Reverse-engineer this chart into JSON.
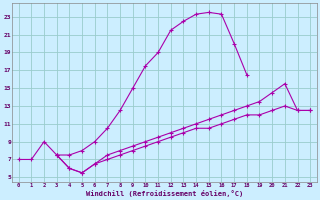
{
  "background_color": "#cceeff",
  "grid_color": "#99cccc",
  "line_color": "#aa00aa",
  "xlim": [
    -0.5,
    23.5
  ],
  "ylim": [
    4.5,
    24.5
  ],
  "yticks": [
    5,
    7,
    9,
    11,
    13,
    15,
    17,
    19,
    21,
    23
  ],
  "xticks": [
    0,
    1,
    2,
    3,
    4,
    5,
    6,
    7,
    8,
    9,
    10,
    11,
    12,
    13,
    14,
    15,
    16,
    17,
    18,
    19,
    20,
    21,
    22,
    23
  ],
  "xlabel": "Windchill (Refroidissement éolien,°C)",
  "line1_x": [
    0,
    1,
    2,
    3,
    4,
    5,
    6,
    7,
    8,
    9,
    10,
    11,
    12,
    13,
    14,
    15,
    16,
    17,
    18
  ],
  "line1_y": [
    7,
    7,
    9,
    7.5,
    7.5,
    8.0,
    9.0,
    10.5,
    12.5,
    15.0,
    17.5,
    19.0,
    21.5,
    22.5,
    23.3,
    23.5,
    23.3,
    20.0,
    16.5
  ],
  "line2_x": [
    3,
    4,
    5,
    6,
    7,
    8,
    9,
    10,
    11,
    12,
    13,
    14,
    15,
    16,
    17,
    18,
    19,
    20,
    21,
    22,
    23
  ],
  "line2_y": [
    7.5,
    6.0,
    5.5,
    6.5,
    7.5,
    8.0,
    8.5,
    9.0,
    9.5,
    10.0,
    10.5,
    11.0,
    11.5,
    12.0,
    12.5,
    13.0,
    13.5,
    14.5,
    15.5,
    12.5,
    12.5
  ],
  "line3_x": [
    3,
    4,
    5,
    6,
    7,
    8,
    9,
    10,
    11,
    12,
    13,
    14,
    15,
    16,
    17,
    18,
    19,
    20,
    21,
    22,
    23
  ],
  "line3_y": [
    7.5,
    6.0,
    5.5,
    6.5,
    7.0,
    7.5,
    8.0,
    8.5,
    9.0,
    9.5,
    10.0,
    10.5,
    10.5,
    11.0,
    11.5,
    12.0,
    12.0,
    12.5,
    13.0,
    12.5,
    12.5
  ]
}
